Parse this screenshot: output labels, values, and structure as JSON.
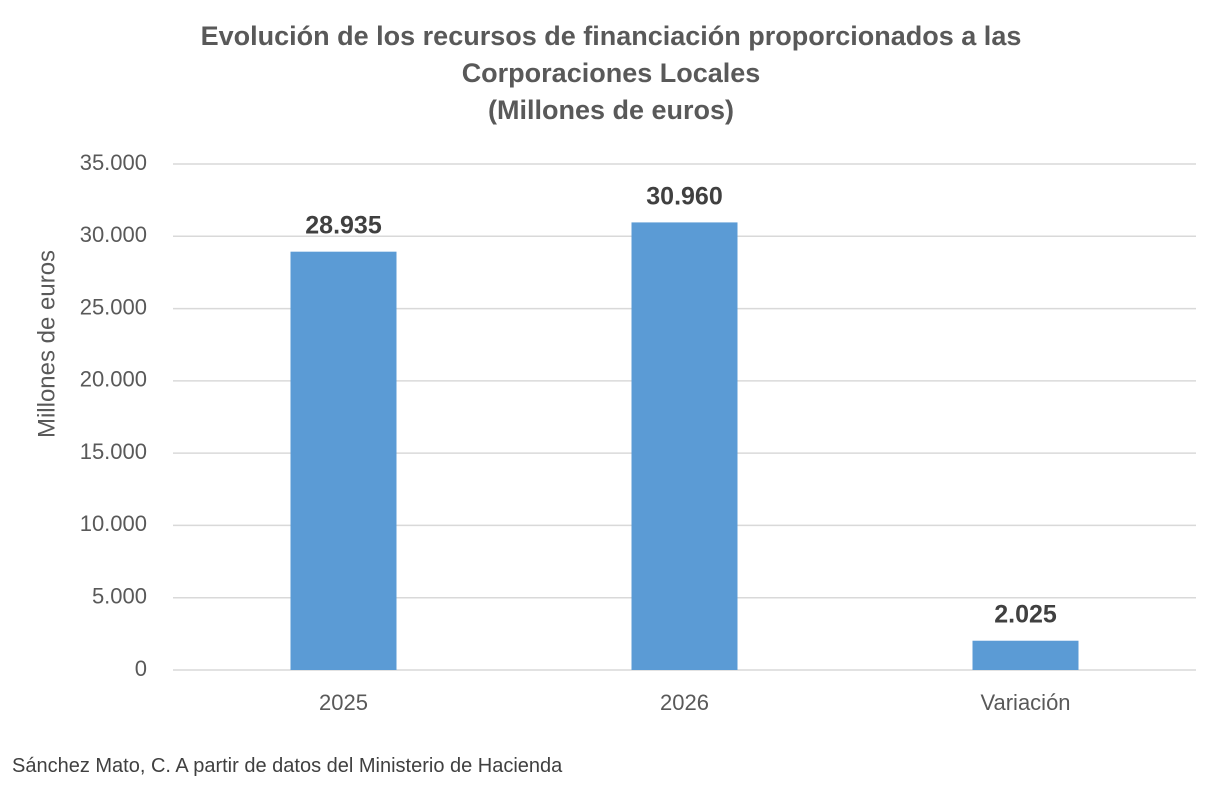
{
  "chart_data": {
    "type": "bar",
    "title_lines": [
      "Evolución de los recursos de financiación proporcionados  a las",
      "Corporaciones Locales",
      "(Millones de euros)"
    ],
    "ylabel": "Millones de euros",
    "xlabel": "",
    "categories": [
      "2025",
      "2026",
      "Variación"
    ],
    "values": [
      28935,
      30960,
      2025
    ],
    "data_labels": [
      "28.935",
      "30.960",
      "2.025"
    ],
    "ylim": [
      0,
      35000
    ],
    "yticks": [
      0,
      5000,
      10000,
      15000,
      20000,
      25000,
      30000,
      35000
    ],
    "ytick_labels": [
      "0",
      "5.000",
      "10.000",
      "15.000",
      "20.000",
      "25.000",
      "30.000",
      "35.000"
    ],
    "grid": true,
    "legend": "none",
    "bar_color": "#5B9BD5",
    "grid_color": "#D9D9D9"
  },
  "source": "Sánchez Mato, C.  A partir de datos del Ministerio de Hacienda"
}
